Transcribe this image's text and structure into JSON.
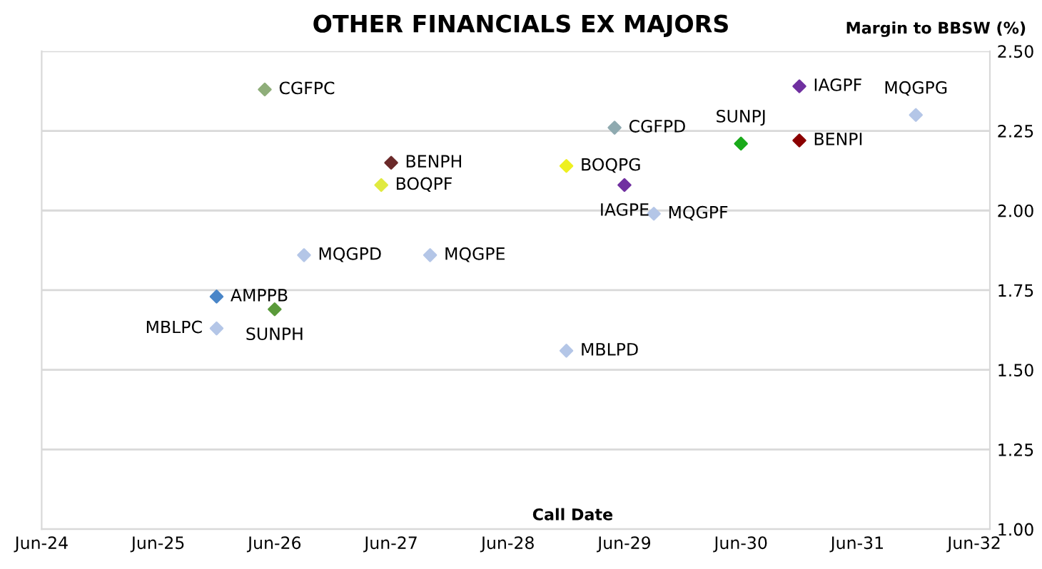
{
  "chart_data": {
    "type": "scatter",
    "title": "OTHER FINANCIALS EX MAJORS",
    "ylabel": "Margin to BBSW (%)",
    "xlabel": "Call Date",
    "x": [
      "2026-05",
      "2027-06",
      "2027-05",
      "2026-09",
      "2027-10",
      "2025-12",
      "2026-06",
      "2025-12",
      "2028-12",
      "2028-12",
      "2029-05",
      "2029-06",
      "2029-09",
      "2030-06",
      "2030-12",
      "2030-12",
      "2031-12"
    ],
    "values": [
      2.38,
      2.15,
      2.08,
      1.86,
      1.86,
      1.73,
      1.69,
      1.63,
      1.56,
      2.14,
      2.26,
      2.08,
      1.99,
      2.21,
      2.39,
      2.22,
      2.3
    ],
    "colors": [
      "#8fae7a",
      "#6b2a2a",
      "#e0ea40",
      "#b4c6e7",
      "#b4c6e7",
      "#4a86c8",
      "#5a9a3a",
      "#b4c6e7",
      "#b4c6e7",
      "#eef020",
      "#8faab0",
      "#7030a0",
      "#b4c6e7",
      "#1aaa1a",
      "#7030a0",
      "#8b0000",
      "#b4c6e7"
    ],
    "annotations": [
      {
        "text": "CGFPC",
        "x": "2026-05",
        "y": 2.38
      },
      {
        "text": "BENPH",
        "x": "2027-06",
        "y": 2.15
      },
      {
        "text": "BOQPF",
        "x": "2027-05",
        "y": 2.08
      },
      {
        "text": "MQGPD",
        "x": "2026-09",
        "y": 1.86
      },
      {
        "text": "MQGPE",
        "x": "2027-10",
        "y": 1.86
      },
      {
        "text": "AMPPB",
        "x": "2025-12",
        "y": 1.73
      },
      {
        "text": "SUNPH",
        "x": "2026-06",
        "y": 1.69
      },
      {
        "text": "MBLPC",
        "x": "2025-12",
        "y": 1.63
      },
      {
        "text": "MBLPD",
        "x": "2028-12",
        "y": 1.56
      },
      {
        "text": "BOQPG",
        "x": "2028-12",
        "y": 2.14
      },
      {
        "text": "CGFPD",
        "x": "2029-05",
        "y": 2.26
      },
      {
        "text": "IAGPE",
        "x": "2029-06",
        "y": 2.08
      },
      {
        "text": "MQGPF",
        "x": "2029-09",
        "y": 1.99
      },
      {
        "text": "SUNPJ",
        "x": "2030-06",
        "y": 2.21
      },
      {
        "text": "IAGPF",
        "x": "2030-12",
        "y": 2.39
      },
      {
        "text": "BENPI",
        "x": "2030-12",
        "y": 2.22
      },
      {
        "text": "MQGPG",
        "x": "2031-12",
        "y": 2.3
      }
    ],
    "marker": "diamond",
    "grid": "y",
    "xlim": [
      "2024-06-01",
      "2032-07-20"
    ],
    "xticks": [
      {
        "value": "2024-06-01",
        "label": "Jun-24"
      },
      {
        "value": "2025-06-01",
        "label": "Jun-25"
      },
      {
        "value": "2026-06-01",
        "label": "Jun-26"
      },
      {
        "value": "2027-06-01",
        "label": "Jun-27"
      },
      {
        "value": "2028-06-01",
        "label": "Jun-28"
      },
      {
        "value": "2029-06-01",
        "label": "Jun-29"
      },
      {
        "value": "2030-06-01",
        "label": "Jun-30"
      },
      {
        "value": "2031-06-01",
        "label": "Jun-31"
      },
      {
        "value": "2032-06-01",
        "label": "Jun-32"
      }
    ],
    "ylim": [
      1.0,
      2.5
    ],
    "yticks": [
      {
        "value": 1.0,
        "label": "1.00"
      },
      {
        "value": 1.25,
        "label": "1.25"
      },
      {
        "value": 1.5,
        "label": "1.50"
      },
      {
        "value": 1.75,
        "label": "1.75"
      },
      {
        "value": 2.0,
        "label": "2.00"
      },
      {
        "value": 2.25,
        "label": "2.25"
      },
      {
        "value": 2.5,
        "label": "2.50"
      }
    ]
  }
}
